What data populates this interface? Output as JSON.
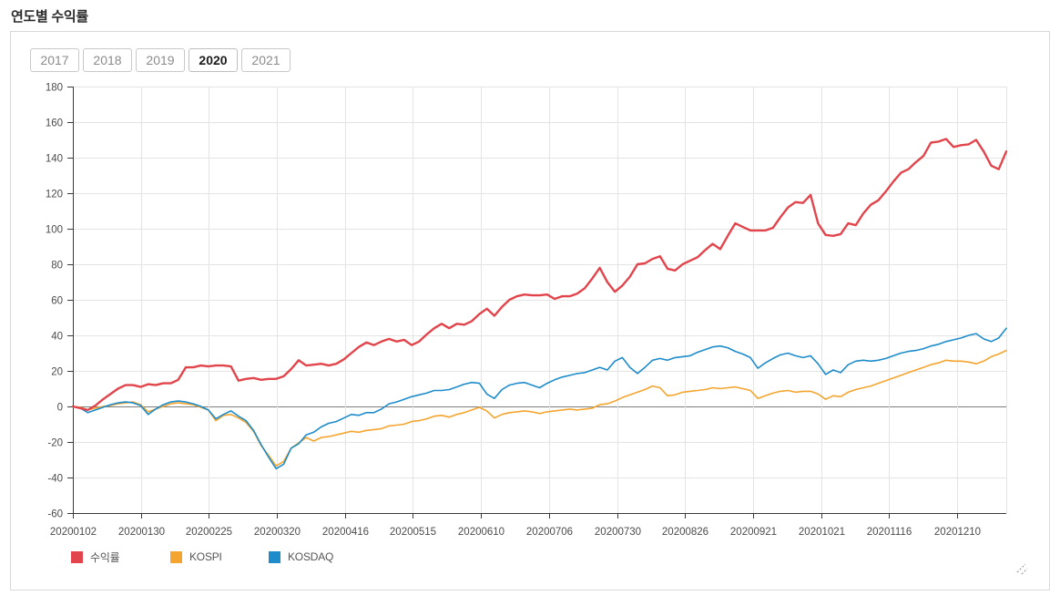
{
  "page": {
    "title": "연도별 수익률"
  },
  "tabs": {
    "items": [
      {
        "label": "2017",
        "selected": false
      },
      {
        "label": "2018",
        "selected": false
      },
      {
        "label": "2019",
        "selected": false
      },
      {
        "label": "2020",
        "selected": true
      },
      {
        "label": "2021",
        "selected": false
      }
    ]
  },
  "legend": {
    "items": [
      {
        "label": "수익률",
        "color": "#e2444b"
      },
      {
        "label": "KOSPI",
        "color": "#f4a52f"
      },
      {
        "label": "KOSDAQ",
        "color": "#1e8ccb"
      }
    ]
  },
  "chart_data": {
    "type": "line",
    "title": "연도별 수익률",
    "xlabel": "",
    "ylabel": "",
    "y_range": [
      -60,
      180
    ],
    "y_ticks": [
      180,
      160,
      140,
      120,
      100,
      80,
      60,
      40,
      20,
      0,
      -20,
      -40,
      -60
    ],
    "x_tick_labels": [
      "20200102",
      "20200130",
      "20200225",
      "20200320",
      "20200416",
      "20200515",
      "20200610",
      "20200706",
      "20200730",
      "20200826",
      "20200921",
      "20201021",
      "20201116",
      "20201210"
    ],
    "grid": true,
    "zero_line_color": "#7d7d7d",
    "grid_color": "#e4e4e4",
    "axis_color": "#3a3a3a",
    "legend_position": "bottom-left",
    "series": [
      {
        "name": "KOSPI",
        "key": "kospi",
        "color": "#f4a52f",
        "width": 1.6,
        "values": [
          0,
          -0.5,
          -2,
          -1,
          0,
          0.5,
          1.5,
          2,
          2.5,
          1,
          -3,
          -1.5,
          0,
          1.5,
          2,
          1.5,
          1,
          -0.5,
          -2,
          -8,
          -5,
          -4.5,
          -6.5,
          -9,
          -14,
          -22,
          -27.5,
          -33.5,
          -31,
          -23.5,
          -20.5,
          -17.5,
          -19.5,
          -17.5,
          -17,
          -16,
          -15,
          -14,
          -14.5,
          -13.5,
          -13,
          -12.5,
          -11,
          -10.5,
          -10,
          -8.5,
          -8,
          -7,
          -5.5,
          -5,
          -6,
          -4.5,
          -3.5,
          -2,
          -0.5,
          -2.5,
          -6.5,
          -4.5,
          -3.5,
          -3,
          -2.5,
          -3,
          -4,
          -3,
          -2.5,
          -2,
          -1.5,
          -2,
          -1.5,
          -1,
          1,
          1.5,
          3,
          5,
          6.5,
          8,
          9.5,
          11.5,
          10.5,
          6,
          6.5,
          8,
          8.5,
          9,
          9.5,
          10.5,
          10,
          10.5,
          11,
          10,
          9,
          4.5,
          6,
          7.5,
          8.5,
          9,
          8,
          8.5,
          8.5,
          7,
          4,
          6,
          5.5,
          8,
          9.5,
          10.5,
          11.5,
          13,
          14.5,
          16,
          17.5,
          19,
          20.5,
          22,
          23.5,
          24.5,
          26,
          25.5,
          25.5,
          25,
          24,
          25.5,
          28,
          29.5,
          31.5
        ]
      },
      {
        "name": "KOSDAQ",
        "key": "kosdaq",
        "color": "#1e8ccb",
        "width": 1.6,
        "values": [
          0,
          -1,
          -3.5,
          -2,
          -0.5,
          1,
          2,
          2.5,
          2,
          0.5,
          -4.5,
          -1.5,
          1,
          2.5,
          3,
          2.5,
          1.5,
          0,
          -2,
          -7,
          -4.5,
          -2.5,
          -5.5,
          -8,
          -13.5,
          -21.5,
          -28.5,
          -35,
          -32.5,
          -23.5,
          -21,
          -16,
          -14.5,
          -11.5,
          -9.5,
          -8.5,
          -6.5,
          -4.5,
          -5,
          -3.5,
          -3.5,
          -1.5,
          1.5,
          2.5,
          4,
          5.5,
          6.5,
          7.5,
          9,
          9,
          9.5,
          11,
          12.5,
          13.5,
          13,
          7,
          4.5,
          9.5,
          12,
          13,
          13.5,
          12,
          10.5,
          13,
          15,
          16.5,
          17.5,
          18.5,
          19,
          20.5,
          22,
          20.5,
          25.5,
          27.5,
          22,
          18.5,
          22,
          26,
          27,
          26,
          27.5,
          28,
          28.5,
          30.5,
          32,
          33.5,
          34,
          33,
          31,
          29.5,
          27.5,
          21.5,
          24.5,
          27,
          29,
          30,
          28.5,
          27.5,
          28.5,
          24,
          18,
          20.5,
          19,
          23.5,
          25.5,
          26,
          25.5,
          26,
          27,
          28.5,
          30,
          31,
          31.5,
          32.5,
          34,
          35,
          36.5,
          37.5,
          38.5,
          40,
          41,
          38,
          36.5,
          38.5,
          44
        ]
      },
      {
        "name": "수익률",
        "key": "returns",
        "color": "#e2444b",
        "width": 2.4,
        "values": [
          0,
          -1,
          -2,
          0.5,
          4,
          7,
          10,
          12,
          12,
          11,
          12.5,
          12,
          13,
          13,
          15,
          22,
          22,
          23,
          22.5,
          23,
          23,
          22.5,
          14.5,
          15.5,
          16,
          15,
          15.5,
          15.5,
          17,
          21,
          26,
          23,
          23.5,
          24,
          23,
          24,
          26.5,
          30,
          33.5,
          36,
          34.5,
          36.5,
          38,
          36.5,
          37.5,
          34.5,
          36.5,
          40.5,
          44,
          46.5,
          44,
          46.5,
          46,
          48,
          52,
          55,
          51,
          56,
          60,
          62,
          63,
          62.5,
          62.5,
          63,
          60.5,
          62,
          62,
          63.5,
          66.5,
          72,
          78,
          70,
          64.5,
          68,
          73,
          80,
          80.5,
          83,
          84.5,
          77.5,
          76.5,
          80,
          82,
          84,
          88,
          91.5,
          88.5,
          96,
          103,
          101,
          99,
          99,
          99,
          100.5,
          106.5,
          112,
          115,
          114.5,
          119,
          103,
          96.5,
          96,
          97,
          103,
          102,
          108.5,
          113.5,
          116,
          121,
          126.5,
          131.5,
          133.5,
          137.5,
          141,
          148.5,
          149,
          150.5,
          146,
          147,
          147.5,
          150,
          143.5,
          135.5,
          133.5,
          143.5
        ]
      }
    ]
  }
}
